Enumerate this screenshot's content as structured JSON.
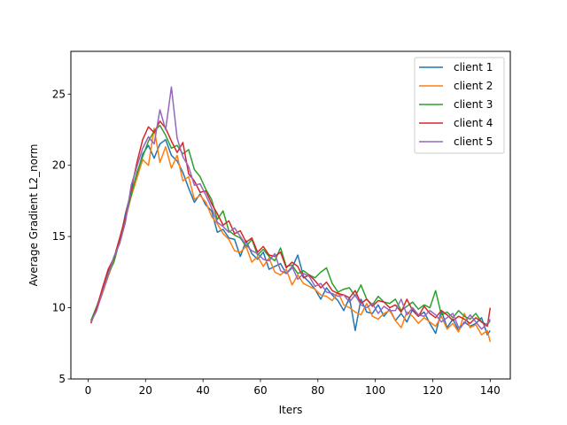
{
  "chart_data": {
    "type": "line",
    "title": "",
    "xlabel": "Iters",
    "ylabel": "Average Gradient L2_norm",
    "xlim": [
      -6,
      147
    ],
    "ylim": [
      5,
      28
    ],
    "xticks": [
      0,
      20,
      40,
      60,
      80,
      100,
      120,
      140
    ],
    "yticks": [
      5,
      10,
      15,
      20,
      25
    ],
    "grid": false,
    "legend_position": "upper right",
    "series": [
      {
        "name": "client 1",
        "color": "#1f77b4",
        "x": [
          1,
          3,
          5,
          7,
          9,
          11,
          13,
          15,
          17,
          19,
          21,
          23,
          25,
          27,
          29,
          31,
          33,
          35,
          37,
          39,
          41,
          43,
          45,
          47,
          49,
          51,
          53,
          55,
          57,
          59,
          61,
          63,
          65,
          67,
          69,
          71,
          73,
          75,
          77,
          79,
          81,
          83,
          85,
          87,
          89,
          91,
          93,
          95,
          97,
          99,
          101,
          103,
          105,
          107,
          109,
          111,
          113,
          115,
          117,
          119,
          121,
          123,
          125,
          127,
          129,
          131,
          133,
          135,
          137,
          139,
          140
        ],
        "y": [
          9.1,
          10.0,
          11.3,
          12.5,
          13.4,
          14.6,
          16.6,
          18.2,
          19.3,
          20.8,
          21.4,
          20.5,
          21.5,
          21.8,
          20.7,
          20.3,
          19.5,
          18.4,
          17.4,
          18.0,
          17.2,
          16.8,
          15.3,
          15.5,
          14.9,
          14.8,
          13.6,
          14.7,
          13.8,
          13.4,
          13.9,
          12.7,
          12.9,
          13.1,
          12.4,
          12.8,
          13.7,
          12.2,
          11.8,
          11.3,
          10.6,
          11.4,
          10.9,
          10.5,
          9.8,
          10.7,
          8.4,
          10.6,
          9.7,
          9.6,
          10.2,
          9.4,
          9.9,
          9.1,
          9.6,
          9.0,
          9.9,
          9.4,
          9.7,
          8.9,
          8.2,
          9.8,
          8.6,
          9.2,
          8.4,
          9.0,
          8.7,
          8.9,
          9.3,
          8.1,
          8.4
        ]
      },
      {
        "name": "client 2",
        "color": "#ff7f0e",
        "x": [
          1,
          3,
          5,
          7,
          9,
          11,
          13,
          15,
          17,
          19,
          21,
          23,
          25,
          27,
          29,
          31,
          33,
          35,
          37,
          39,
          41,
          43,
          45,
          47,
          49,
          51,
          53,
          55,
          57,
          59,
          61,
          63,
          65,
          67,
          69,
          71,
          73,
          75,
          77,
          79,
          81,
          83,
          85,
          87,
          89,
          91,
          93,
          95,
          97,
          99,
          101,
          103,
          105,
          107,
          109,
          111,
          113,
          115,
          117,
          119,
          121,
          123,
          125,
          127,
          129,
          131,
          133,
          135,
          137,
          139,
          140
        ],
        "y": [
          9.0,
          9.9,
          11.0,
          12.2,
          13.3,
          14.8,
          16.2,
          17.8,
          19.1,
          20.4,
          20.0,
          22.6,
          20.2,
          21.3,
          19.8,
          20.7,
          18.9,
          19.2,
          17.6,
          17.9,
          17.4,
          16.4,
          15.9,
          15.2,
          14.8,
          14.0,
          13.9,
          14.3,
          13.2,
          13.6,
          12.9,
          13.5,
          12.5,
          12.3,
          12.7,
          11.6,
          12.3,
          11.7,
          11.5,
          11.3,
          10.9,
          10.8,
          10.5,
          11.1,
          10.2,
          10.0,
          9.7,
          9.5,
          10.3,
          9.4,
          9.2,
          9.6,
          9.8,
          9.1,
          8.6,
          9.7,
          9.4,
          8.9,
          9.3,
          9.0,
          8.7,
          9.4,
          8.5,
          8.9,
          8.3,
          9.6,
          8.6,
          8.8,
          8.1,
          8.4,
          7.6
        ]
      },
      {
        "name": "client 3",
        "color": "#2ca02c",
        "x": [
          1,
          3,
          5,
          7,
          9,
          11,
          13,
          15,
          17,
          19,
          21,
          23,
          25,
          27,
          29,
          31,
          33,
          35,
          37,
          39,
          41,
          43,
          45,
          47,
          49,
          51,
          53,
          55,
          57,
          59,
          61,
          63,
          65,
          67,
          69,
          71,
          73,
          75,
          77,
          79,
          81,
          83,
          85,
          87,
          89,
          91,
          93,
          95,
          97,
          99,
          101,
          103,
          105,
          107,
          109,
          111,
          113,
          115,
          117,
          119,
          121,
          123,
          125,
          127,
          129,
          131,
          133,
          135,
          137,
          139,
          140
        ],
        "y": [
          9.1,
          10.1,
          11.2,
          12.4,
          13.2,
          14.7,
          16.3,
          17.9,
          19.5,
          20.6,
          21.7,
          22.4,
          22.8,
          22.1,
          21.2,
          21.4,
          20.8,
          21.1,
          19.7,
          19.2,
          18.3,
          17.6,
          16.2,
          16.8,
          15.4,
          15.1,
          14.9,
          14.3,
          14.8,
          13.7,
          14.1,
          13.6,
          13.3,
          14.2,
          12.9,
          13.0,
          12.4,
          12.6,
          12.3,
          12.1,
          12.5,
          12.8,
          11.7,
          11.1,
          11.3,
          11.4,
          10.8,
          11.6,
          10.6,
          10.2,
          10.8,
          10.4,
          10.3,
          10.6,
          9.8,
          10.1,
          10.4,
          9.9,
          10.2,
          10.0,
          11.2,
          9.5,
          9.7,
          9.3,
          9.8,
          9.4,
          9.2,
          9.6,
          9.0,
          8.8,
          9.1
        ]
      },
      {
        "name": "client 4",
        "color": "#d62728",
        "x": [
          1,
          3,
          5,
          7,
          9,
          11,
          13,
          15,
          17,
          19,
          21,
          23,
          25,
          27,
          29,
          31,
          33,
          35,
          37,
          39,
          41,
          43,
          45,
          47,
          49,
          51,
          53,
          55,
          57,
          59,
          61,
          63,
          65,
          67,
          69,
          71,
          73,
          75,
          77,
          79,
          81,
          83,
          85,
          87,
          89,
          91,
          93,
          95,
          97,
          99,
          101,
          103,
          105,
          107,
          109,
          111,
          113,
          115,
          117,
          119,
          121,
          123,
          125,
          127,
          129,
          131,
          133,
          135,
          137,
          139,
          140
        ],
        "y": [
          8.9,
          10.0,
          11.4,
          12.7,
          13.5,
          14.9,
          16.4,
          18.3,
          20.2,
          21.8,
          22.7,
          22.3,
          23.1,
          22.6,
          21.7,
          20.9,
          21.6,
          19.4,
          18.9,
          18.1,
          18.2,
          17.3,
          16.6,
          15.8,
          16.1,
          15.2,
          15.4,
          14.6,
          14.9,
          13.9,
          14.3,
          13.7,
          13.6,
          13.9,
          12.8,
          13.2,
          12.9,
          12.1,
          12.3,
          11.9,
          11.4,
          11.8,
          11.2,
          11.0,
          10.9,
          10.7,
          11.2,
          10.3,
          10.6,
          10.1,
          10.5,
          10.4,
          10.0,
          10.2,
          9.7,
          10.6,
          9.8,
          9.4,
          10.1,
          9.6,
          9.3,
          9.8,
          9.5,
          9.1,
          9.4,
          9.2,
          8.9,
          9.3,
          9.0,
          8.7,
          10.0
        ]
      },
      {
        "name": "client 5",
        "color": "#9467bd",
        "x": [
          1,
          3,
          5,
          7,
          9,
          11,
          13,
          15,
          17,
          19,
          21,
          23,
          25,
          27,
          29,
          31,
          33,
          35,
          37,
          39,
          41,
          43,
          45,
          47,
          49,
          51,
          53,
          55,
          57,
          59,
          61,
          63,
          65,
          67,
          69,
          71,
          73,
          75,
          77,
          79,
          81,
          83,
          85,
          87,
          89,
          91,
          93,
          95,
          97,
          99,
          101,
          103,
          105,
          107,
          109,
          111,
          113,
          115,
          117,
          119,
          121,
          123,
          125,
          127,
          129,
          131,
          133,
          135,
          137,
          139,
          140
        ],
        "y": [
          9.0,
          9.8,
          11.1,
          12.3,
          13.6,
          14.5,
          16.0,
          18.6,
          19.9,
          21.2,
          22.0,
          21.5,
          23.9,
          22.5,
          25.5,
          21.9,
          20.6,
          19.9,
          18.6,
          18.7,
          17.9,
          17.0,
          16.0,
          15.7,
          15.3,
          15.6,
          15.0,
          14.4,
          14.0,
          13.8,
          13.4,
          13.3,
          13.8,
          12.6,
          12.4,
          12.9,
          12.0,
          12.4,
          12.2,
          11.5,
          11.7,
          11.1,
          11.0,
          10.8,
          10.9,
          10.4,
          10.9,
          10.2,
          10.0,
          10.3,
          9.6,
          10.1,
          9.8,
          9.8,
          10.6,
          9.5,
          10.0,
          9.5,
          9.4,
          9.8,
          9.5,
          9.0,
          9.3,
          9.6,
          8.6,
          8.9,
          9.5,
          9.0,
          8.5,
          8.9,
          9.2
        ]
      }
    ]
  }
}
